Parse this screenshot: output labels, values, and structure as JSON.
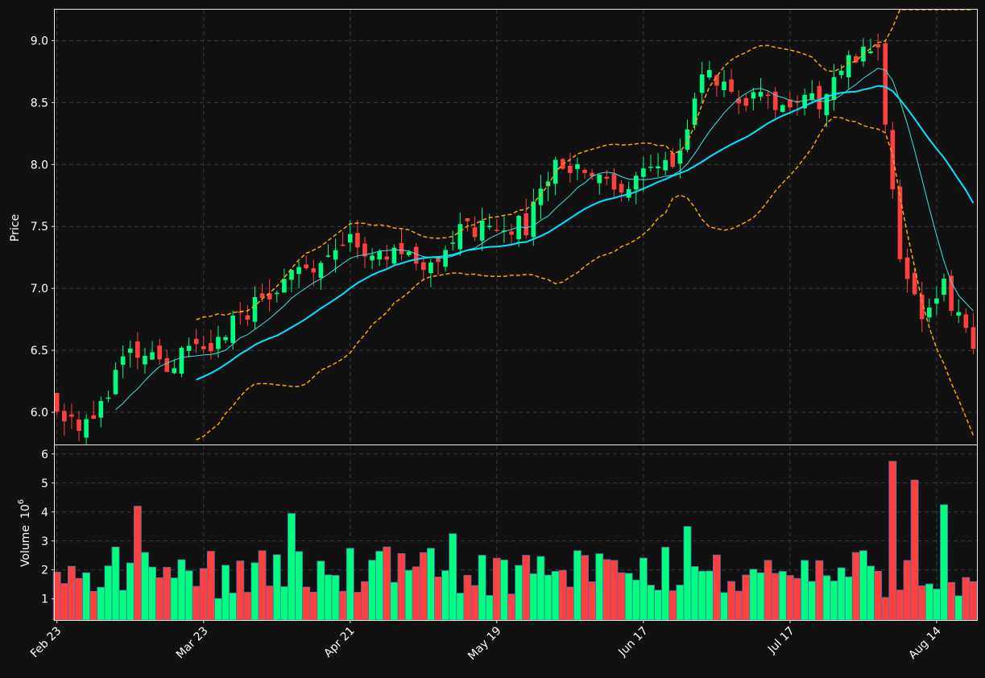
{
  "colors": {
    "background": "#111111",
    "up": "#00ff80",
    "down": "#ff4040",
    "ma_fast": "#40e0e0",
    "ma_slow": "#00e5ff",
    "bollinger": "#ffa500",
    "grid": "#3a3a3a",
    "text": "#ffffff"
  },
  "chart_data": {
    "type": "candlestick",
    "price_panel": {
      "ylabel": "Price",
      "yticks": [
        "6.0",
        "6.5",
        "7.0",
        "7.5",
        "8.0",
        "8.5",
        "9.0"
      ],
      "ylim": [
        5.74,
        9.25
      ],
      "grid": true
    },
    "volume_panel": {
      "ylabel": "Volume",
      "ylabel_exponent": "10",
      "ylabel_power": "6",
      "yticks": [
        "1",
        "2",
        "3",
        "4",
        "5",
        "6"
      ],
      "ylim": [
        0.27,
        6.3
      ],
      "grid": true
    },
    "xticks": [
      {
        "label": "Feb 23",
        "index": 0
      },
      {
        "label": "Mar 23",
        "index": 20
      },
      {
        "label": "Apr 21",
        "index": 40
      },
      {
        "label": "May 19",
        "index": 60
      },
      {
        "label": "Jun 17",
        "index": 80
      },
      {
        "label": "Jul 17",
        "index": 100
      },
      {
        "label": "Aug 14",
        "index": 120
      }
    ],
    "x_range": [
      -0.3,
      125.5
    ],
    "seed": 42,
    "anchors": [
      [
        0,
        6.05
      ],
      [
        3,
        5.9
      ],
      [
        6,
        6.1
      ],
      [
        10,
        6.45
      ],
      [
        15,
        6.4
      ],
      [
        20,
        6.5
      ],
      [
        25,
        6.75
      ],
      [
        30,
        7.05
      ],
      [
        35,
        7.15
      ],
      [
        40,
        7.35
      ],
      [
        45,
        7.3
      ],
      [
        50,
        7.2
      ],
      [
        55,
        7.45
      ],
      [
        60,
        7.5
      ],
      [
        64,
        7.5
      ],
      [
        68,
        8.0
      ],
      [
        72,
        8.0
      ],
      [
        76,
        7.8
      ],
      [
        80,
        7.9
      ],
      [
        84,
        8.0
      ],
      [
        88,
        8.7
      ],
      [
        92,
        8.6
      ],
      [
        96,
        8.5
      ],
      [
        100,
        8.5
      ],
      [
        104,
        8.5
      ],
      [
        108,
        8.9
      ],
      [
        112,
        8.95
      ],
      [
        115,
        7.2
      ],
      [
        118,
        6.8
      ],
      [
        121,
        7.0
      ],
      [
        124,
        6.6
      ],
      [
        125,
        6.5
      ]
    ],
    "volume_peaks": [
      [
        11,
        4.2
      ],
      [
        32,
        3.95
      ],
      [
        54,
        3.25
      ],
      [
        86,
        3.5
      ],
      [
        114,
        5.75
      ],
      [
        117,
        5.1
      ],
      [
        121,
        4.25
      ]
    ],
    "ma_fast_period": 9,
    "ma_slow_period": 20,
    "bb_period": 20
  }
}
